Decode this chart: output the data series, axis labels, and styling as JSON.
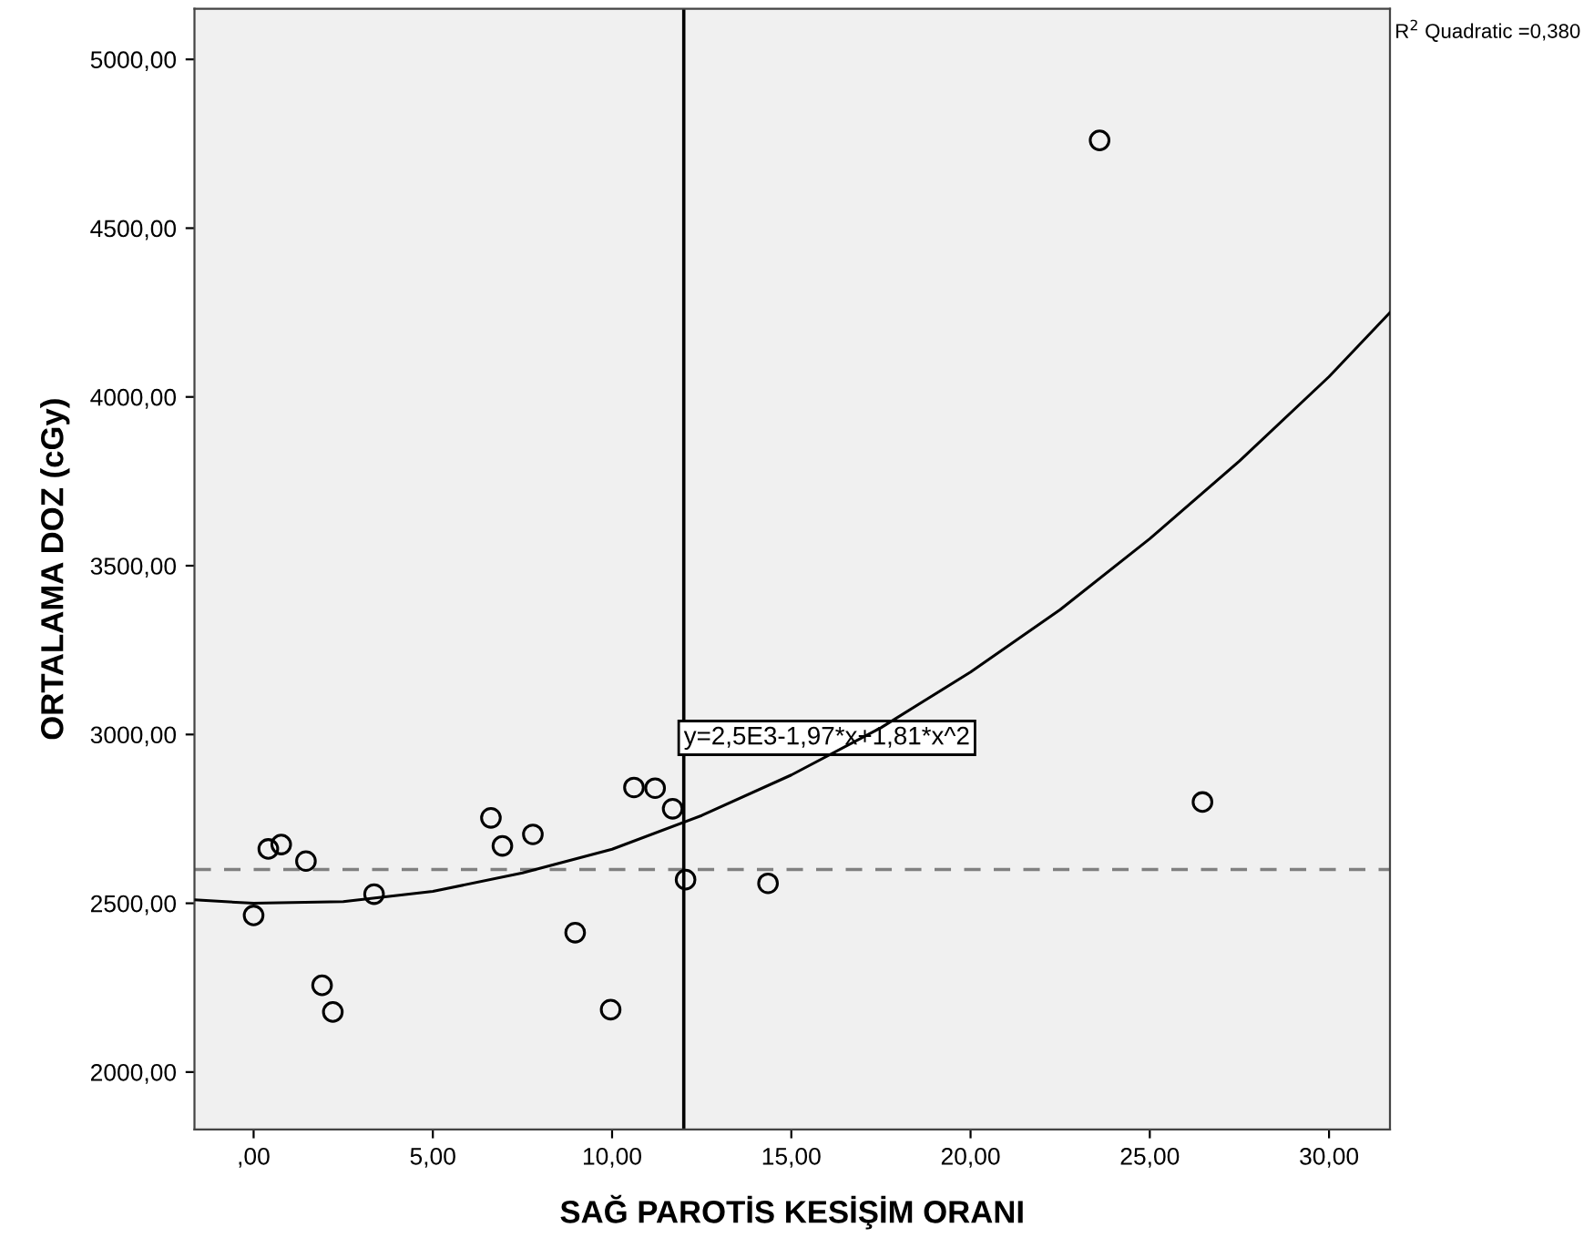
{
  "chart_data": {
    "type": "scatter",
    "xlabel": "SAĞ PAROTİS KESİŞİM ORANI",
    "ylabel": "ORTALAMA DOZ (cGy)",
    "xlim": [
      -1.65,
      31.7
    ],
    "ylim": [
      1830,
      5150
    ],
    "xticks": [
      {
        "value": 0,
        "label": ",00"
      },
      {
        "value": 5,
        "label": "5,00"
      },
      {
        "value": 10,
        "label": "10,00"
      },
      {
        "value": 15,
        "label": "15,00"
      },
      {
        "value": 20,
        "label": "20,00"
      },
      {
        "value": 25,
        "label": "25,00"
      },
      {
        "value": 30,
        "label": "30,00"
      }
    ],
    "yticks": [
      {
        "value": 2000,
        "label": "2000,00"
      },
      {
        "value": 2500,
        "label": "2500,00"
      },
      {
        "value": 3000,
        "label": "3000,00"
      },
      {
        "value": 3500,
        "label": "3500,00"
      },
      {
        "value": 4000,
        "label": "4000,00"
      },
      {
        "value": 4500,
        "label": "4500,00"
      },
      {
        "value": 5000,
        "label": "5000,00"
      }
    ],
    "grid": false,
    "legend": false,
    "marker": "circle",
    "series": [
      {
        "color": "#000000",
        "x": [
          0.0,
          0.41,
          0.77,
          1.46,
          3.36,
          1.91,
          2.21,
          6.62,
          6.94,
          7.79,
          8.97,
          9.96,
          10.61,
          11.2,
          11.69,
          12.05,
          14.35,
          23.6,
          26.47
        ],
        "values": [
          2464,
          2661,
          2674,
          2625,
          2527,
          2257,
          2178,
          2753,
          2670,
          2704,
          2413,
          2185,
          2843,
          2841,
          2780,
          2570,
          2559,
          4760,
          2800
        ]
      },
      {
        "type": "line",
        "color": "#000000",
        "marker": "none",
        "line_style": "solid",
        "x": [
          -1.65,
          0,
          2.5,
          5,
          7.5,
          10,
          12.5,
          15,
          17.5,
          20,
          22.5,
          25,
          27.5,
          30,
          31.7
        ],
        "values": [
          2510,
          2500,
          2505,
          2535,
          2590,
          2660,
          2760,
          2880,
          3020,
          3185,
          3370,
          3580,
          3810,
          4060,
          4250
        ]
      }
    ],
    "ref_lines": [
      {
        "axis": "y",
        "value": 2600,
        "color": "#808080",
        "line_style": "dashed"
      },
      {
        "axis": "x",
        "value": 12,
        "color": "#000000",
        "line_style": "solid"
      }
    ],
    "annotations": [
      {
        "text": "y=2,5E3-1,97*x+1,81*x^2",
        "x": 12,
        "y": 2990
      },
      "R$^{2}$ Quadratic =0,380"
    ]
  }
}
